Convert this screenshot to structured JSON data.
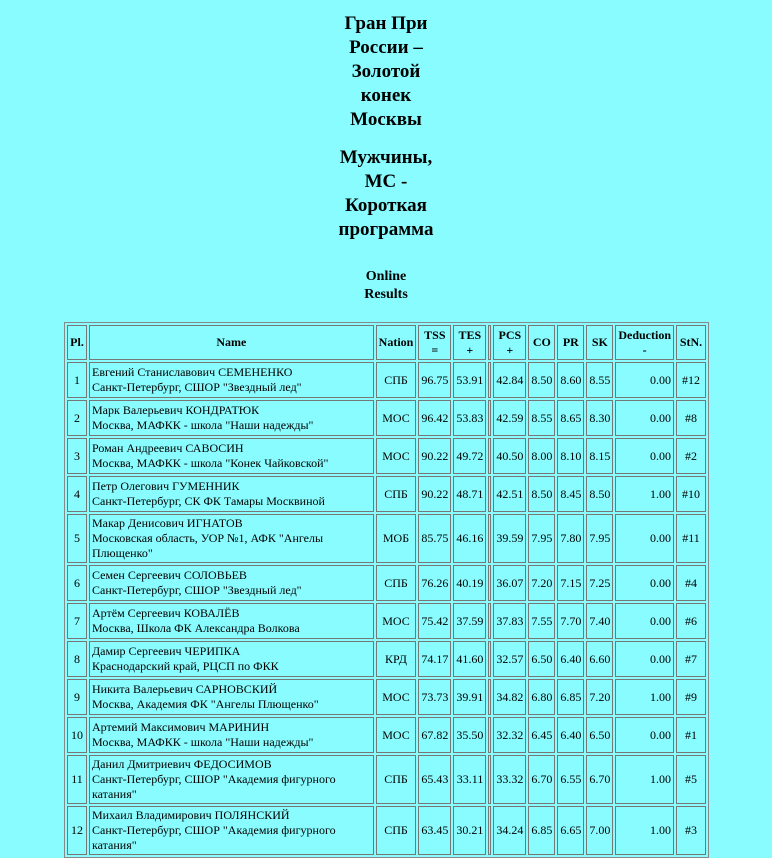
{
  "title_lines": [
    "Гран При",
    "России –",
    "Золотой",
    "конек",
    "Москвы"
  ],
  "category_lines": [
    "Мужчины,",
    "МС -",
    "Короткая",
    "программа"
  ],
  "results_lines": [
    "Online",
    "Results"
  ],
  "colors": {
    "background": "#88fcfe"
  },
  "table": {
    "headers": {
      "pl": "Pl.",
      "name": "Name",
      "nation": "Nation",
      "tss": "TSS",
      "tss_sub": "=",
      "tes": "TES",
      "tes_sub": "+",
      "pcs": "PCS",
      "pcs_sub": "+",
      "co": "CO",
      "pr": "PR",
      "sk": "SK",
      "ded": "Deduction",
      "ded_sub": "-",
      "stn": "StN."
    },
    "rows": [
      {
        "pl": "1",
        "name": "Евгений Станиславович СЕМЕНЕНКО",
        "club": "Санкт-Петербург, СШОР \"Звездный лед\"",
        "nation": "СПБ",
        "tss": "96.75",
        "tes": "53.91",
        "pcs": "42.84",
        "co": "8.50",
        "pr": "8.60",
        "sk": "8.55",
        "ded": "0.00",
        "stn": "#12"
      },
      {
        "pl": "2",
        "name": "Марк Валерьевич КОНДРАТЮК",
        "club": "Москва, МАФКК - школа \"Наши надежды\"",
        "nation": "МОС",
        "tss": "96.42",
        "tes": "53.83",
        "pcs": "42.59",
        "co": "8.55",
        "pr": "8.65",
        "sk": "8.30",
        "ded": "0.00",
        "stn": "#8"
      },
      {
        "pl": "3",
        "name": "Роман Андреевич САВОСИН",
        "club": "Москва, МАФКК - школа \"Конек Чайковской\"",
        "nation": "МОС",
        "tss": "90.22",
        "tes": "49.72",
        "pcs": "40.50",
        "co": "8.00",
        "pr": "8.10",
        "sk": "8.15",
        "ded": "0.00",
        "stn": "#2"
      },
      {
        "pl": "4",
        "name": "Петр Олегович ГУМЕННИК",
        "club": "Санкт-Петербург, СК ФК Тамары Москвиной",
        "nation": "СПБ",
        "tss": "90.22",
        "tes": "48.71",
        "pcs": "42.51",
        "co": "8.50",
        "pr": "8.45",
        "sk": "8.50",
        "ded": "1.00",
        "stn": "#10"
      },
      {
        "pl": "5",
        "name": "Макар Денисович ИГНАТОВ",
        "club": "Московская область, УОР №1, АФК \"Ангелы Плющенко\"",
        "nation": "МОБ",
        "tss": "85.75",
        "tes": "46.16",
        "pcs": "39.59",
        "co": "7.95",
        "pr": "7.80",
        "sk": "7.95",
        "ded": "0.00",
        "stn": "#11"
      },
      {
        "pl": "6",
        "name": "Семен Сергеевич СОЛОВЬЕВ",
        "club": "Санкт-Петербург, СШОР \"Звездный лед\"",
        "nation": "СПБ",
        "tss": "76.26",
        "tes": "40.19",
        "pcs": "36.07",
        "co": "7.20",
        "pr": "7.15",
        "sk": "7.25",
        "ded": "0.00",
        "stn": "#4"
      },
      {
        "pl": "7",
        "name": "Артём Сергеевич КОВАЛЁВ",
        "club": "Москва, Школа ФК Александра Волкова",
        "nation": "МОС",
        "tss": "75.42",
        "tes": "37.59",
        "pcs": "37.83",
        "co": "7.55",
        "pr": "7.70",
        "sk": "7.40",
        "ded": "0.00",
        "stn": "#6"
      },
      {
        "pl": "8",
        "name": "Дамир Сергеевич ЧЕРИПКА",
        "club": "Краснодарский край, РЦСП по ФКК",
        "nation": "КРД",
        "tss": "74.17",
        "tes": "41.60",
        "pcs": "32.57",
        "co": "6.50",
        "pr": "6.40",
        "sk": "6.60",
        "ded": "0.00",
        "stn": "#7"
      },
      {
        "pl": "9",
        "name": "Никита Валерьевич САРНОВСКИЙ",
        "club": "Москва, Академия ФК \"Ангелы Плющенко\"",
        "nation": "МОС",
        "tss": "73.73",
        "tes": "39.91",
        "pcs": "34.82",
        "co": "6.80",
        "pr": "6.85",
        "sk": "7.20",
        "ded": "1.00",
        "stn": "#9"
      },
      {
        "pl": "10",
        "name": "Артемий Максимович МАРИНИН",
        "club": "Москва, МАФКК - школа \"Наши надежды\"",
        "nation": "МОС",
        "tss": "67.82",
        "tes": "35.50",
        "pcs": "32.32",
        "co": "6.45",
        "pr": "6.40",
        "sk": "6.50",
        "ded": "0.00",
        "stn": "#1"
      },
      {
        "pl": "11",
        "name": "Данил Дмитриевич ФЕДОСИМОВ",
        "club": "Санкт-Петербург, СШОР \"Академия фигурного катания\"",
        "nation": "СПБ",
        "tss": "65.43",
        "tes": "33.11",
        "pcs": "33.32",
        "co": "6.70",
        "pr": "6.55",
        "sk": "6.70",
        "ded": "1.00",
        "stn": "#5"
      },
      {
        "pl": "12",
        "name": "Михаил Владимирович ПОЛЯНСКИЙ",
        "club": "Санкт-Петербург, СШОР \"Академия фигурного катания\"",
        "nation": "СПБ",
        "tss": "63.45",
        "tes": "30.21",
        "pcs": "34.24",
        "co": "6.85",
        "pr": "6.65",
        "sk": "7.00",
        "ded": "1.00",
        "stn": "#3"
      }
    ]
  }
}
